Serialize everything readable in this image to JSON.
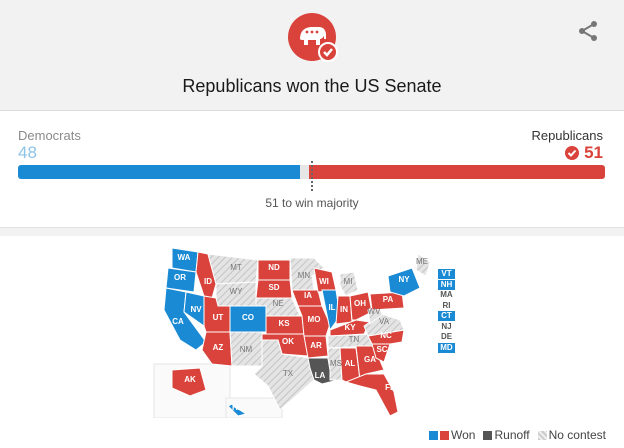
{
  "header": {
    "headline": "Republicans won the US Senate",
    "logo_icon": "republican-elephant-check-icon",
    "share_icon": "share-icon"
  },
  "results": {
    "dem_label": "Democrats",
    "dem_seats": 48,
    "dem_seats_text": "48",
    "rep_label": "Republicans",
    "rep_seats": 51,
    "rep_seats_text": "51",
    "total_seats": 100,
    "majority_threshold": 51,
    "majority_text": "51 to win majority"
  },
  "colors": {
    "dem": "#1a8ad4",
    "rep": "#d9433b",
    "runoff": "#555555",
    "no_contest": "#d0d0d0"
  },
  "states": {
    "WA": "dem",
    "OR": "dem",
    "CA": "dem",
    "NV": "dem",
    "ID": "rep",
    "MT": "none",
    "WY": "none",
    "UT": "rep",
    "CO": "dem",
    "AZ": "rep",
    "NM": "none",
    "ND": "rep",
    "SD": "rep",
    "NE": "none",
    "KS": "rep",
    "OK": "rep",
    "TX": "none",
    "MN": "none",
    "IA": "rep",
    "MO": "rep",
    "AR": "rep",
    "LA": "runoff",
    "WI": "rep",
    "IL": "dem",
    "MI": "none",
    "IN": "rep",
    "OH": "rep",
    "KY": "rep",
    "TN": "none",
    "MS": "none",
    "AL": "rep",
    "GA": "rep",
    "FL": "rep",
    "SC": "rep",
    "NC": "rep",
    "VA": "none",
    "WV": "none",
    "PA": "rep",
    "NY": "dem",
    "ME": "none",
    "AK": "rep",
    "HI": "dem"
  },
  "callouts": [
    {
      "label": "VT",
      "status": "dem"
    },
    {
      "label": "NH",
      "status": "dem"
    },
    {
      "label": "MA",
      "status": "none"
    },
    {
      "label": "RI",
      "status": "none"
    },
    {
      "label": "CT",
      "status": "dem"
    },
    {
      "label": "NJ",
      "status": "none"
    },
    {
      "label": "DE",
      "status": "none"
    },
    {
      "label": "MD",
      "status": "dem"
    }
  ],
  "legend": {
    "won": "Won",
    "runoff": "Runoff",
    "no_contest": "No contest"
  }
}
